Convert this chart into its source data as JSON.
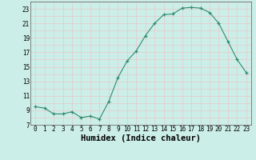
{
  "x": [
    0,
    1,
    2,
    3,
    4,
    5,
    6,
    7,
    8,
    9,
    10,
    11,
    12,
    13,
    14,
    15,
    16,
    17,
    18,
    19,
    20,
    21,
    22,
    23
  ],
  "y": [
    9.5,
    9.3,
    8.5,
    8.5,
    8.8,
    8.0,
    8.2,
    7.8,
    10.2,
    13.5,
    15.8,
    17.2,
    19.3,
    21.0,
    22.2,
    22.3,
    23.1,
    23.2,
    23.1,
    22.5,
    21.0,
    18.5,
    16.0,
    14.2
  ],
  "xlabel": "Humidex (Indice chaleur)",
  "ylim": [
    7,
    24
  ],
  "xlim": [
    -0.5,
    23.5
  ],
  "yticks": [
    7,
    9,
    11,
    13,
    15,
    17,
    19,
    21,
    23
  ],
  "xticks": [
    0,
    1,
    2,
    3,
    4,
    5,
    6,
    7,
    8,
    9,
    10,
    11,
    12,
    13,
    14,
    15,
    16,
    17,
    18,
    19,
    20,
    21,
    22,
    23
  ],
  "line_color": "#2e8b6e",
  "marker_color": "#2e8b6e",
  "bg_color": "#cceee8",
  "grid_color": "#e8c8c8",
  "tick_label_fontsize": 5.5,
  "xlabel_fontsize": 7.5
}
